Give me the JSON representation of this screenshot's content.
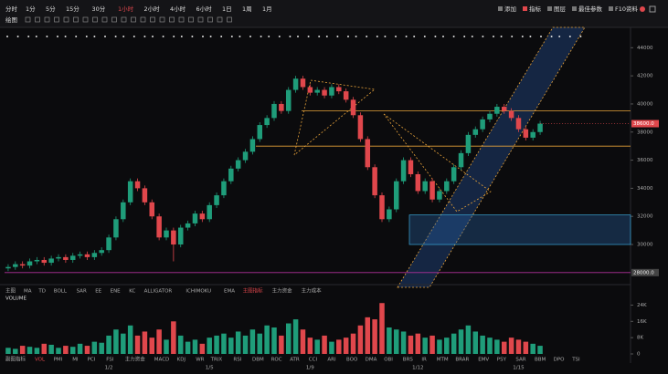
{
  "toolbar": {
    "intervals": [
      "分时",
      "1分",
      "5分",
      "15分",
      "30分",
      "1小时",
      "2小时",
      "4小时",
      "6小时",
      "1日",
      "1周",
      "1月"
    ],
    "active_index": 5,
    "right_buttons": [
      "添加",
      "指标",
      "图层",
      "最佳参数",
      "F10资料"
    ],
    "draw_label": "绘图"
  },
  "main_indicators": [
    "主图",
    "MA",
    "TD",
    "BOLL",
    "SAR",
    "EE",
    "ENE",
    "KC",
    "ALLIGATOR",
    "ICHIMOKU",
    "EMA",
    "主图指标",
    "主力资金",
    "主力成本"
  ],
  "sub_indicators": [
    "副图指标",
    "VOL",
    "PMI",
    "MI",
    "PCI",
    "FSI",
    "主力资金",
    "MACD",
    "KDJ",
    "WR",
    "TRIX",
    "RSI",
    "DBM",
    "ROC",
    "ATR",
    "CCI",
    "ARI",
    "BOO",
    "DMA",
    "OBI",
    "BRS",
    "IR",
    "MTM",
    "BRAR",
    "EMV",
    "PSY",
    "SAR",
    "BBM",
    "DPO",
    "TSI"
  ],
  "chart_data": {
    "type": "candlestick",
    "up_color": "#1f9d7a",
    "down_color": "#e0474c",
    "categories": [
      null,
      null,
      null,
      null,
      null,
      null,
      null,
      null,
      null,
      null,
      null,
      null,
      null,
      null,
      "1/2",
      null,
      null,
      null,
      null,
      null,
      null,
      null,
      null,
      null,
      null,
      null,
      null,
      null,
      "1/5",
      null,
      null,
      null,
      null,
      null,
      null,
      null,
      null,
      null,
      null,
      null,
      null,
      null,
      "1/9",
      null,
      null,
      null,
      null,
      null,
      null,
      null,
      null,
      null,
      null,
      null,
      null,
      null,
      null,
      "1/12",
      null,
      null,
      null,
      null,
      null,
      null,
      null,
      null,
      null,
      null,
      null,
      null,
      null,
      "1/15",
      null,
      null,
      null
    ],
    "open": [
      28300,
      28400,
      28600,
      28500,
      28800,
      28900,
      28700,
      29000,
      29100,
      28900,
      29200,
      29300,
      29100,
      29400,
      29600,
      30500,
      31800,
      33000,
      34500,
      34000,
      33000,
      32000,
      30500,
      31000,
      30000,
      31200,
      31500,
      32200,
      31800,
      32800,
      33500,
      34500,
      35400,
      36000,
      36600,
      37500,
      38500,
      39000,
      40000,
      39500,
      41000,
      41800,
      41200,
      40800,
      41000,
      40600,
      41200,
      40900,
      40300,
      39200,
      37500,
      35500,
      33500,
      31800,
      32500,
      34500,
      36000,
      35000,
      33800,
      34500,
      33200,
      33800,
      34500,
      35500,
      36500,
      37800,
      38200,
      38900,
      39300,
      39800,
      39500,
      39000,
      38200,
      37600,
      38000
    ],
    "high": [
      28600,
      28800,
      28800,
      29000,
      29100,
      29100,
      29200,
      29300,
      29300,
      29400,
      29500,
      29500,
      29600,
      29800,
      30700,
      32000,
      33200,
      34700,
      34700,
      34200,
      33200,
      32200,
      31200,
      31200,
      31400,
      31700,
      32400,
      32400,
      33000,
      33700,
      34700,
      35600,
      36200,
      36800,
      37700,
      38700,
      39200,
      40200,
      40200,
      41200,
      42000,
      42000,
      41400,
      41200,
      41200,
      41400,
      41400,
      41100,
      40500,
      39400,
      37700,
      35700,
      33700,
      32700,
      34700,
      36200,
      36200,
      35200,
      34700,
      34700,
      34000,
      34700,
      35700,
      36700,
      38000,
      38400,
      39100,
      39500,
      40000,
      40000,
      39700,
      39200,
      38400,
      38200,
      38800
    ],
    "low": [
      28100,
      28200,
      28300,
      28300,
      28600,
      28500,
      28500,
      28800,
      28700,
      28700,
      29000,
      28900,
      28900,
      29200,
      29400,
      30300,
      31600,
      32800,
      33800,
      32800,
      31800,
      30300,
      30300,
      28800,
      29800,
      31000,
      31300,
      31600,
      31600,
      32600,
      33300,
      34300,
      35200,
      35800,
      36400,
      37300,
      38300,
      38800,
      39300,
      39300,
      40800,
      41000,
      40600,
      40600,
      40400,
      40400,
      40700,
      40100,
      39000,
      37300,
      35300,
      33300,
      31600,
      31600,
      32300,
      34300,
      34800,
      33600,
      33600,
      33000,
      33000,
      33600,
      34300,
      35300,
      36300,
      37600,
      38000,
      38700,
      39100,
      39300,
      38800,
      38000,
      37400,
      37400,
      37800
    ],
    "close": [
      28400,
      28600,
      28500,
      28800,
      28900,
      28700,
      29000,
      29100,
      28900,
      29200,
      29300,
      29100,
      29400,
      29600,
      30500,
      31800,
      33000,
      34500,
      34000,
      33000,
      32000,
      30500,
      31000,
      30000,
      31200,
      31500,
      32200,
      31800,
      32800,
      33500,
      34500,
      35400,
      36000,
      36600,
      37500,
      38500,
      39000,
      40000,
      39500,
      41000,
      41800,
      41200,
      40800,
      41000,
      40600,
      41200,
      40900,
      40300,
      39200,
      37500,
      35500,
      33500,
      31800,
      32500,
      34500,
      36000,
      35000,
      33800,
      34500,
      33200,
      33800,
      34500,
      35500,
      36500,
      37800,
      38200,
      38900,
      39300,
      39800,
      39500,
      39000,
      38200,
      37600,
      38000,
      38600
    ],
    "ylim": [
      27600,
      44800
    ],
    "yticks": [
      30000,
      32000,
      34000,
      36000,
      38000,
      40000,
      42000,
      44000
    ],
    "last_price_label": "38600.0",
    "levels": [
      {
        "value": 39500,
        "color": "#e8a33a"
      },
      {
        "value": 37000,
        "color": "#e8a33a"
      },
      {
        "value": 28000,
        "color": "#b0309a",
        "label": "28000.0"
      }
    ],
    "zone": [
      30000,
      32100
    ],
    "volume_title": "VOLUME",
    "volume": [
      3000,
      2500,
      4000,
      3500,
      3000,
      5000,
      4500,
      3000,
      4000,
      3500,
      5000,
      4000,
      6000,
      5500,
      9000,
      12000,
      10000,
      14000,
      9000,
      11000,
      8000,
      12000,
      7000,
      16000,
      9000,
      6000,
      7000,
      5000,
      8000,
      9000,
      10000,
      8000,
      11000,
      9000,
      12000,
      10000,
      14000,
      13000,
      9000,
      15000,
      17000,
      12000,
      8000,
      7000,
      9000,
      6000,
      7000,
      8000,
      10000,
      14000,
      18000,
      17000,
      25000,
      13000,
      12000,
      11000,
      9000,
      10000,
      8000,
      9000,
      7000,
      8000,
      10000,
      12000,
      14000,
      11000,
      9000,
      8000,
      7000,
      6000,
      8000,
      7000,
      6000,
      5000,
      4000
    ],
    "vlim": [
      0,
      26000
    ],
    "vticks": [
      0,
      {
        "value": 8000,
        "label": "8K"
      },
      {
        "value": 16000,
        "label": "16K"
      },
      {
        "value": 24000,
        "label": "24K"
      }
    ]
  }
}
